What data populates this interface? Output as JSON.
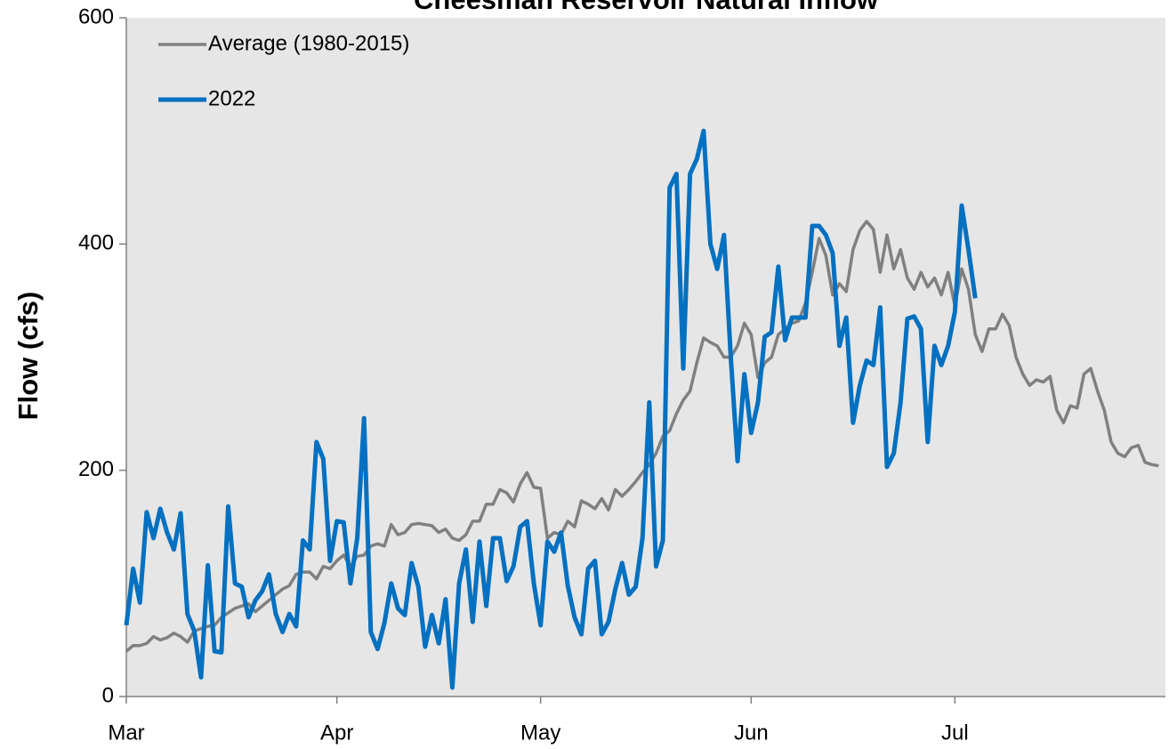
{
  "chart_data": {
    "type": "line",
    "title": "Cheesman Reservoir Natural Inflow",
    "y_label": "Flow (cfs)",
    "categories": [
      "Mar",
      null,
      null,
      null,
      null,
      null,
      null,
      null,
      null,
      null,
      null,
      null,
      null,
      null,
      null,
      null,
      null,
      null,
      null,
      null,
      null,
      null,
      null,
      null,
      null,
      null,
      null,
      null,
      null,
      null,
      null,
      "Apr",
      null,
      null,
      null,
      null,
      null,
      null,
      null,
      null,
      null,
      null,
      null,
      null,
      null,
      null,
      null,
      null,
      null,
      null,
      null,
      null,
      null,
      null,
      null,
      null,
      null,
      null,
      null,
      null,
      null,
      "May",
      null,
      null,
      null,
      null,
      null,
      null,
      null,
      null,
      null,
      null,
      null,
      null,
      null,
      null,
      null,
      null,
      null,
      null,
      null,
      null,
      null,
      null,
      null,
      null,
      null,
      null,
      null,
      null,
      null,
      null,
      "Jun",
      null,
      null,
      null,
      null,
      null,
      null,
      null,
      null,
      null,
      null,
      null,
      null,
      null,
      null,
      null,
      null,
      null,
      null,
      null,
      null,
      null,
      null,
      null,
      null,
      null,
      null,
      null,
      null,
      null,
      "Jul",
      null,
      null,
      null,
      null,
      null,
      null,
      null,
      null,
      null,
      null,
      null,
      null,
      null,
      null,
      null,
      null,
      null,
      null,
      null,
      null,
      null,
      null,
      null,
      null,
      null,
      null,
      null,
      null,
      null,
      null
    ],
    "series": [
      {
        "name": "Average (1980-2015)",
        "color": "#808080",
        "width": 3.5,
        "values": [
          40,
          45,
          45,
          47,
          53,
          50,
          52,
          56,
          53,
          48,
          58,
          60,
          62,
          63,
          70,
          74,
          78,
          80,
          82,
          75,
          80,
          85,
          90,
          95,
          98,
          108,
          110,
          110,
          104,
          115,
          113,
          120,
          125,
          115,
          124,
          125,
          133,
          135,
          133,
          152,
          143,
          145,
          152,
          153,
          152,
          151,
          145,
          148,
          140,
          138,
          143,
          155,
          155,
          170,
          170,
          183,
          180,
          172,
          188,
          198,
          185,
          184,
          140,
          145,
          143,
          155,
          150,
          173,
          170,
          166,
          175,
          165,
          183,
          177,
          183,
          190,
          198,
          205,
          215,
          230,
          235,
          250,
          262,
          270,
          295,
          317,
          313,
          310,
          300,
          300,
          310,
          330,
          320,
          282,
          295,
          300,
          320,
          325,
          330,
          332,
          348,
          375,
          405,
          390,
          355,
          365,
          358,
          395,
          412,
          420,
          413,
          375,
          408,
          378,
          395,
          370,
          360,
          375,
          362,
          370,
          355,
          375,
          345,
          378,
          360,
          320,
          305,
          325,
          325,
          338,
          328,
          300,
          285,
          275,
          280,
          278,
          283,
          253,
          242,
          257,
          255,
          285,
          290,
          270,
          253,
          225,
          215,
          212,
          220,
          222,
          207,
          205,
          204
        ]
      },
      {
        "name": "2022",
        "color": "#0070c0",
        "width": 5,
        "values": [
          63,
          113,
          83,
          163,
          140,
          166,
          145,
          130,
          162,
          73,
          58,
          17,
          116,
          40,
          39,
          168,
          100,
          97,
          70,
          85,
          93,
          108,
          73,
          57,
          73,
          62,
          138,
          130,
          225,
          210,
          120,
          155,
          154,
          100,
          140,
          246,
          57,
          42,
          65,
          100,
          78,
          72,
          118,
          97,
          44,
          72,
          47,
          86,
          8,
          100,
          130,
          66,
          137,
          80,
          140,
          140,
          102,
          115,
          150,
          155,
          100,
          63,
          137,
          128,
          145,
          98,
          70,
          55,
          113,
          120,
          55,
          66,
          95,
          118,
          90,
          97,
          140,
          260,
          115,
          138,
          450,
          462,
          290,
          462,
          475,
          500,
          400,
          378,
          408,
          300,
          208,
          285,
          233,
          260,
          318,
          322,
          380,
          315,
          335,
          335,
          335,
          416,
          416,
          408,
          392,
          310,
          335,
          242,
          275,
          297,
          293,
          344,
          203,
          215,
          260,
          334,
          336,
          325,
          225,
          310,
          293,
          310,
          340,
          434,
          395,
          352,
          null,
          null,
          null,
          null,
          null,
          null,
          null,
          null,
          null,
          null,
          null,
          null,
          null,
          null,
          null,
          null,
          null,
          null,
          null,
          null,
          null,
          null,
          null,
          null,
          null,
          null,
          null
        ]
      }
    ],
    "ylim": [
      0,
      600
    ],
    "yticks": [
      0,
      200,
      400,
      600
    ],
    "grid": false,
    "legend": "upper left",
    "background": "#e6e6e6"
  }
}
